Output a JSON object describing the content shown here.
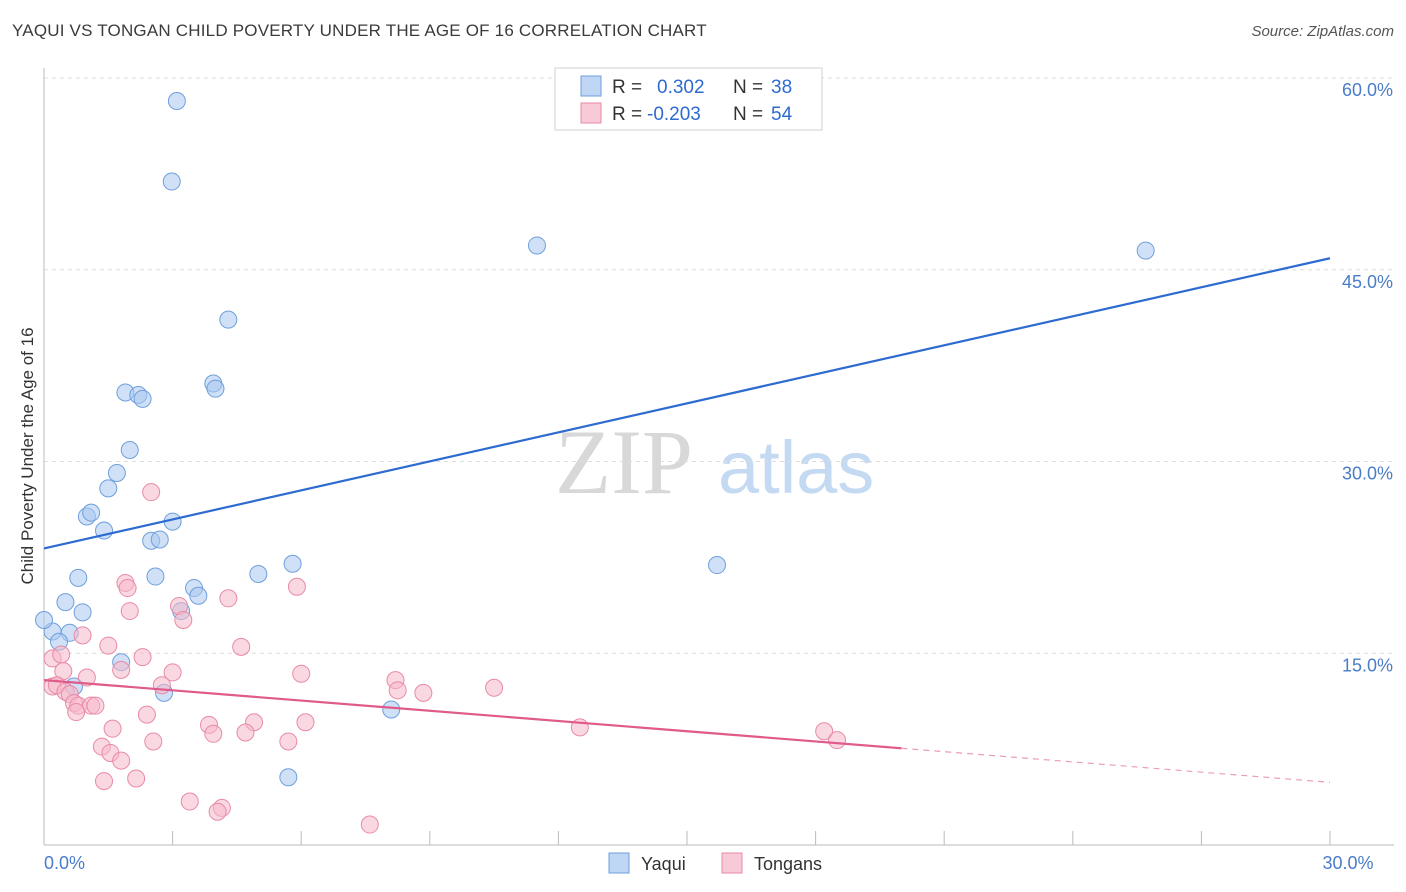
{
  "header": {
    "title": "YAQUI VS TONGAN CHILD POVERTY UNDER THE AGE OF 16 CORRELATION CHART",
    "source": "Source: ZipAtlas.com"
  },
  "watermark": {
    "zip": "ZIP",
    "atlas": "atlas"
  },
  "legend": {
    "rows": [
      {
        "r_label": "R =",
        "r_value": "0.302",
        "n_label": "N =",
        "n_value": "38",
        "color": "#a9c8f0"
      },
      {
        "r_label": "R =",
        "r_value": "-0.203",
        "n_label": "N =",
        "n_value": "54",
        "color": "#f6b8ca"
      }
    ]
  },
  "bottom_legend": [
    {
      "label": "Yaqui",
      "color": "#a9c8f0"
    },
    {
      "label": "Tongans",
      "color": "#f6b8ca"
    }
  ],
  "chart_data": {
    "type": "scatter",
    "title": "YAQUI VS TONGAN CHILD POVERTY UNDER THE AGE OF 16 CORRELATION CHART",
    "xlabel": "",
    "ylabel": "Child Poverty Under the Age of 16",
    "xlim": [
      0,
      30
    ],
    "ylim": [
      0,
      60
    ],
    "y_ticks": [
      {
        "value": 15,
        "label": "15.0%"
      },
      {
        "value": 30,
        "label": "30.0%"
      },
      {
        "value": 45,
        "label": "45.0%"
      },
      {
        "value": 60,
        "label": "60.0%"
      }
    ],
    "x_tick_labels": [
      {
        "value": 0,
        "label": "0.0%"
      },
      {
        "value": 30,
        "label": "30.0%"
      }
    ],
    "x_minor_ticks": [
      0,
      3,
      6,
      9,
      12,
      15,
      18,
      21,
      24,
      27,
      30
    ],
    "series": [
      {
        "name": "Yaqui",
        "color": "#a9c8f0",
        "stroke": "#6f9fdc",
        "line_color": "#2e6bd1",
        "trend": {
          "x0": 0,
          "y0": 23.2,
          "x1": 30,
          "y1": 45.9,
          "solid_until": 30
        },
        "points": [
          [
            3.1,
            58.2
          ],
          [
            2.98,
            51.9
          ],
          [
            11.5,
            46.9
          ],
          [
            25.7,
            46.5
          ],
          [
            4.3,
            41.1
          ],
          [
            1.9,
            35.4
          ],
          [
            2.2,
            35.2
          ],
          [
            2.3,
            34.9
          ],
          [
            3.95,
            36.1
          ],
          [
            4.0,
            35.7
          ],
          [
            2.0,
            30.9
          ],
          [
            1.7,
            29.1
          ],
          [
            1.5,
            27.9
          ],
          [
            1.0,
            25.7
          ],
          [
            1.1,
            26.0
          ],
          [
            3.0,
            25.3
          ],
          [
            1.4,
            24.6
          ],
          [
            2.5,
            23.8
          ],
          [
            2.7,
            23.9
          ],
          [
            0.8,
            20.9
          ],
          [
            2.6,
            21.0
          ],
          [
            5.0,
            21.2
          ],
          [
            5.8,
            22.0
          ],
          [
            15.7,
            21.9
          ],
          [
            3.5,
            20.1
          ],
          [
            3.6,
            19.5
          ],
          [
            0.5,
            19.0
          ],
          [
            3.2,
            18.3
          ],
          [
            0.9,
            18.2
          ],
          [
            0.2,
            16.7
          ],
          [
            0.6,
            16.6
          ],
          [
            0.35,
            15.9
          ],
          [
            1.8,
            14.3
          ],
          [
            0.7,
            12.4
          ],
          [
            2.8,
            11.9
          ],
          [
            8.1,
            10.6
          ],
          [
            5.7,
            5.3
          ],
          [
            0.0,
            17.6
          ]
        ]
      },
      {
        "name": "Tongans",
        "color": "#f6b8ca",
        "stroke": "#e98aa6",
        "line_color": "#e05a8a",
        "trend": {
          "x0": 0,
          "y0": 12.9,
          "x1": 30,
          "y1": 4.9,
          "solid_until": 20
        },
        "points": [
          [
            2.5,
            27.6
          ],
          [
            1.9,
            20.5
          ],
          [
            1.95,
            20.1
          ],
          [
            5.9,
            20.2
          ],
          [
            4.3,
            19.3
          ],
          [
            3.15,
            18.7
          ],
          [
            2.0,
            18.3
          ],
          [
            3.25,
            17.6
          ],
          [
            0.9,
            16.4
          ],
          [
            1.5,
            15.6
          ],
          [
            4.6,
            15.5
          ],
          [
            0.2,
            14.6
          ],
          [
            0.4,
            14.9
          ],
          [
            2.3,
            14.7
          ],
          [
            1.8,
            13.7
          ],
          [
            0.45,
            13.6
          ],
          [
            6.0,
            13.4
          ],
          [
            3.0,
            13.5
          ],
          [
            1.0,
            13.1
          ],
          [
            8.2,
            12.9
          ],
          [
            0.2,
            12.4
          ],
          [
            0.3,
            12.5
          ],
          [
            0.5,
            12.0
          ],
          [
            0.6,
            11.8
          ],
          [
            2.75,
            12.5
          ],
          [
            8.25,
            12.1
          ],
          [
            8.85,
            11.9
          ],
          [
            10.5,
            12.3
          ],
          [
            0.7,
            11.1
          ],
          [
            0.8,
            10.9
          ],
          [
            1.1,
            10.9
          ],
          [
            1.2,
            10.9
          ],
          [
            0.75,
            10.4
          ],
          [
            2.4,
            10.2
          ],
          [
            6.1,
            9.6
          ],
          [
            3.85,
            9.4
          ],
          [
            4.9,
            9.6
          ],
          [
            1.6,
            9.1
          ],
          [
            12.5,
            9.2
          ],
          [
            3.95,
            8.7
          ],
          [
            4.7,
            8.8
          ],
          [
            18.2,
            8.9
          ],
          [
            18.5,
            8.2
          ],
          [
            2.55,
            8.1
          ],
          [
            5.7,
            8.1
          ],
          [
            1.35,
            7.7
          ],
          [
            1.55,
            7.2
          ],
          [
            1.8,
            6.6
          ],
          [
            1.4,
            5.0
          ],
          [
            2.15,
            5.2
          ],
          [
            3.4,
            3.4
          ],
          [
            4.15,
            2.9
          ],
          [
            4.05,
            2.6
          ],
          [
            7.6,
            1.6
          ]
        ]
      }
    ]
  }
}
